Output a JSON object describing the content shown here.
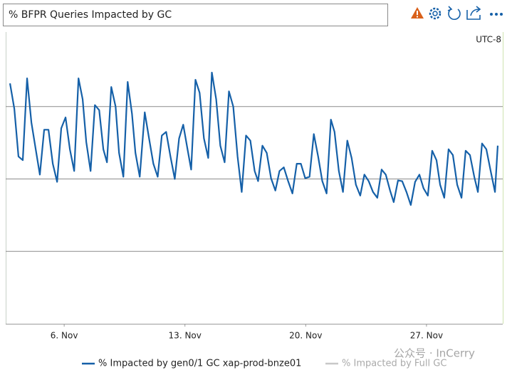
{
  "chart_data": {
    "type": "line",
    "title": "% BFPR Queries Impacted by GC",
    "timezone": "UTC-8",
    "watermark": "公众号 · InCerry",
    "x": [
      2.86,
      3.11,
      3.35,
      3.6,
      3.85,
      4.1,
      4.35,
      4.59,
      4.84,
      5.09,
      5.34,
      5.59,
      5.83,
      6.08,
      6.33,
      6.58,
      6.83,
      7.07,
      7.28,
      7.53,
      7.78,
      8.03,
      8.27,
      8.48,
      8.73,
      8.98,
      9.18,
      9.43,
      9.68,
      9.93,
      10.13,
      10.38,
      10.67,
      10.92,
      11.17,
      11.42,
      11.66,
      11.91,
      12.16,
      12.41,
      12.66,
      12.9,
      13.15,
      13.36,
      13.61,
      13.85,
      14.1,
      14.35,
      14.56,
      14.81,
      15.05,
      15.3,
      15.55,
      15.8,
      16.05,
      16.29,
      16.54,
      16.79,
      17.04,
      17.24,
      17.49,
      17.74,
      17.99,
      18.24,
      18.48,
      18.73,
      18.98,
      19.23,
      19.48,
      19.72,
      19.97,
      20.22,
      20.47,
      20.72,
      20.96,
      21.21,
      21.46,
      21.67,
      21.92,
      22.16,
      22.41,
      22.66,
      22.91,
      23.16,
      23.4,
      23.65,
      23.9,
      24.15,
      24.4,
      24.64,
      24.89,
      25.1,
      25.35,
      25.59,
      25.84,
      26.09,
      26.34,
      26.59,
      26.83,
      27.08,
      27.33,
      27.58,
      27.79,
      28.03,
      28.28,
      28.53,
      28.78,
      29.03,
      29.27,
      29.52,
      29.77,
      29.98,
      30.22,
      30.47,
      30.72,
      30.97,
      31.13
    ],
    "series": [
      {
        "name": "% Impacted by gen0/1 GC xap-prod-bnze01",
        "color": "#1560a8",
        "values": [
          3.32,
          2.97,
          2.31,
          2.26,
          3.39,
          2.78,
          2.41,
          2.06,
          2.68,
          2.68,
          2.21,
          1.96,
          2.7,
          2.85,
          2.41,
          2.11,
          3.39,
          3.1,
          2.51,
          2.11,
          3.02,
          2.95,
          2.41,
          2.23,
          3.27,
          3.0,
          2.36,
          2.03,
          3.34,
          2.9,
          2.36,
          2.03,
          2.92,
          2.56,
          2.21,
          2.03,
          2.6,
          2.65,
          2.31,
          2.0,
          2.56,
          2.75,
          2.41,
          2.13,
          3.37,
          3.19,
          2.56,
          2.29,
          3.47,
          3.1,
          2.46,
          2.23,
          3.21,
          3.0,
          2.31,
          1.82,
          2.6,
          2.53,
          2.11,
          1.97,
          2.46,
          2.36,
          2.01,
          1.84,
          2.11,
          2.16,
          1.97,
          1.8,
          2.21,
          2.21,
          2.01,
          2.03,
          2.62,
          2.31,
          1.97,
          1.8,
          2.82,
          2.65,
          2.11,
          1.82,
          2.53,
          2.29,
          1.92,
          1.77,
          2.06,
          1.97,
          1.82,
          1.74,
          2.13,
          2.06,
          1.84,
          1.68,
          1.98,
          1.97,
          1.82,
          1.64,
          1.96,
          2.06,
          1.87,
          1.77,
          2.39,
          2.26,
          1.92,
          1.74,
          2.41,
          2.33,
          1.92,
          1.74,
          2.39,
          2.33,
          2.03,
          1.82,
          2.49,
          2.41,
          2.11,
          1.82,
          2.46
        ]
      },
      {
        "name": "% Impacted by Full GC",
        "color": "#c8c8c8",
        "values": [
          null,
          null,
          null,
          null,
          null,
          null,
          null,
          null,
          null,
          null,
          null,
          null,
          null,
          null,
          null,
          null,
          null,
          null,
          null,
          null,
          null,
          null,
          null,
          null,
          null,
          null,
          null,
          null,
          null,
          null,
          null,
          null,
          null,
          null,
          null,
          null,
          null,
          null,
          null,
          null,
          null,
          null,
          null,
          null,
          null,
          null,
          null,
          null,
          null,
          null,
          null,
          null,
          null,
          null,
          null,
          null,
          null,
          null,
          null,
          null,
          null,
          null,
          null,
          null,
          null,
          null,
          null,
          null,
          null,
          null,
          null,
          null,
          null,
          null,
          null,
          null,
          null,
          null,
          null,
          null,
          null,
          null,
          null,
          null,
          null,
          null,
          null,
          null,
          null,
          null,
          null,
          null,
          null,
          null,
          null,
          null,
          null,
          null,
          null,
          null,
          null,
          null,
          null,
          null,
          null,
          null,
          null,
          null,
          null,
          null,
          null,
          null,
          null,
          null,
          null,
          null,
          null
        ]
      }
    ],
    "xlim": [
      2.61,
      31.42
    ],
    "xticks": [
      {
        "value": 6,
        "label": "6. Nov"
      },
      {
        "value": 13,
        "label": "13. Nov"
      },
      {
        "value": 20,
        "label": "20. Nov"
      },
      {
        "value": 27,
        "label": "27. Nov"
      }
    ],
    "ylim": [
      0,
      4
    ],
    "ygrid": [
      1,
      2,
      3
    ],
    "grid": true
  }
}
